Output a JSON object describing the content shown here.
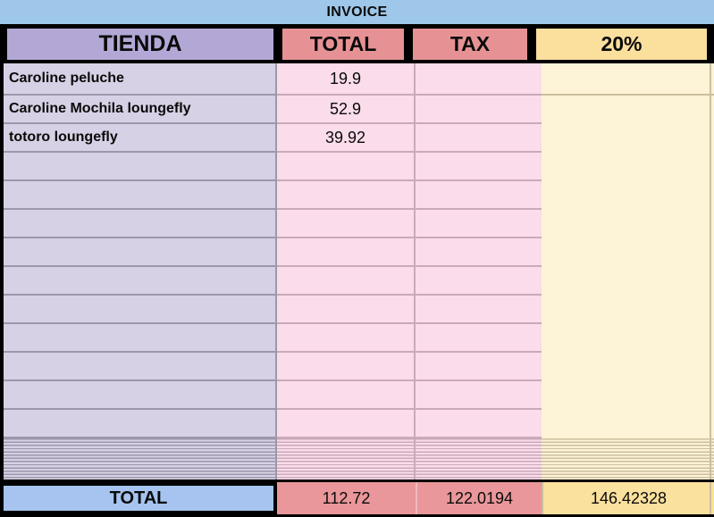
{
  "window": {
    "title": "INVOICE"
  },
  "colors": {
    "title-bg": "#9ec7e9",
    "header-purple": "#b3a8d5",
    "header-salmon": "#e69295",
    "header-yellow": "#fbdf9d",
    "col1-bg": "#d7d1e5",
    "pink-bg": "#fbdcea",
    "cream-bg": "#fdf3d6",
    "line-gray": "#9e97ab",
    "line-pink": "#c9a9ba",
    "line-tan": "#cbbf9e",
    "footer-blue": "#a6c4ef",
    "footer-salmon": "#e9979a",
    "footer-yellow": "#fbe19e",
    "border-black": "#000000"
  },
  "header": {
    "columns": [
      "TIENDA",
      "TOTAL",
      "TAX",
      "20%"
    ]
  },
  "rows": [
    {
      "tienda": "Caroline peluche",
      "total": "19.9",
      "tax": "",
      "pct": ""
    },
    {
      "tienda": "Caroline Mochila loungefly",
      "total": "52.9",
      "tax": "",
      "pct": ""
    },
    {
      "tienda": "totoro loungefly",
      "total": "39.92",
      "tax": "",
      "pct": ""
    }
  ],
  "empty_rows": 10,
  "footer": {
    "label": "TOTAL",
    "total": "112.72",
    "tax": "122.0194",
    "pct": "146.42328"
  }
}
